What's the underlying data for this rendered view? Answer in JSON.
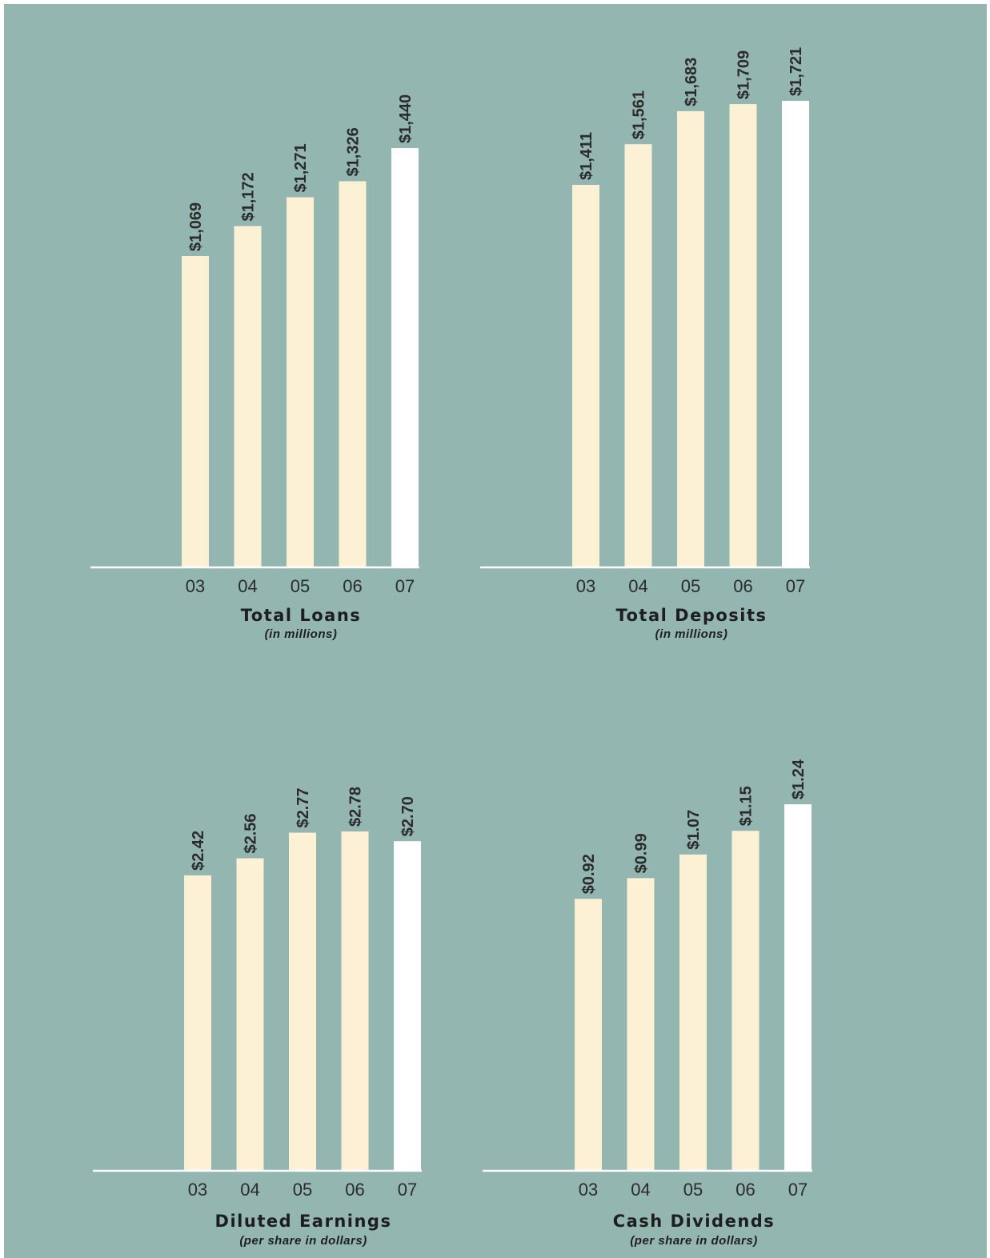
{
  "colors": {
    "background": "#94b6b1",
    "bar": "#fcf1d5",
    "bar_highlight": "#ffffff",
    "axis": "#ffffff",
    "text": "#2b2b2b"
  },
  "chart_data": [
    {
      "type": "bar",
      "title": "Total Loans",
      "subtitle": "(in millions)",
      "categories": [
        "03",
        "04",
        "05",
        "06",
        "07"
      ],
      "values": [
        1069,
        1172,
        1271,
        1326,
        1440
      ],
      "value_labels": [
        "$1,069",
        "$1,172",
        "$1,271",
        "$1,326",
        "$1,440"
      ],
      "ylim": [
        0,
        1440
      ],
      "highlight_index": 4,
      "grid": false,
      "legend": "none"
    },
    {
      "type": "bar",
      "title": "Total Deposits",
      "subtitle": "(in millions)",
      "categories": [
        "03",
        "04",
        "05",
        "06",
        "07"
      ],
      "values": [
        1411,
        1561,
        1683,
        1709,
        1721
      ],
      "value_labels": [
        "$1,411",
        "$1,561",
        "$1,683",
        "$1,709",
        "$1,721"
      ],
      "ylim": [
        0,
        1721
      ],
      "highlight_index": 4,
      "grid": false,
      "legend": "none"
    },
    {
      "type": "bar",
      "title": "Diluted Earnings",
      "subtitle": "(per share in dollars)",
      "categories": [
        "03",
        "04",
        "05",
        "06",
        "07"
      ],
      "values": [
        2.42,
        2.56,
        2.77,
        2.78,
        2.7
      ],
      "value_labels": [
        "$2.42",
        "$2.56",
        "$2.77",
        "$2.78",
        "$2.70"
      ],
      "ylim": [
        0,
        2.78
      ],
      "highlight_index": 4,
      "grid": false,
      "legend": "none"
    },
    {
      "type": "bar",
      "title": "Cash Dividends",
      "subtitle": "(per share in dollars)",
      "categories": [
        "03",
        "04",
        "05",
        "06",
        "07"
      ],
      "values": [
        0.92,
        0.99,
        1.07,
        1.15,
        1.24
      ],
      "value_labels": [
        "$0.92",
        "$0.99",
        "$1.07",
        "$1.15",
        "$1.24"
      ],
      "ylim": [
        0,
        1.24
      ],
      "highlight_index": 4,
      "grid": false,
      "legend": "none"
    }
  ]
}
